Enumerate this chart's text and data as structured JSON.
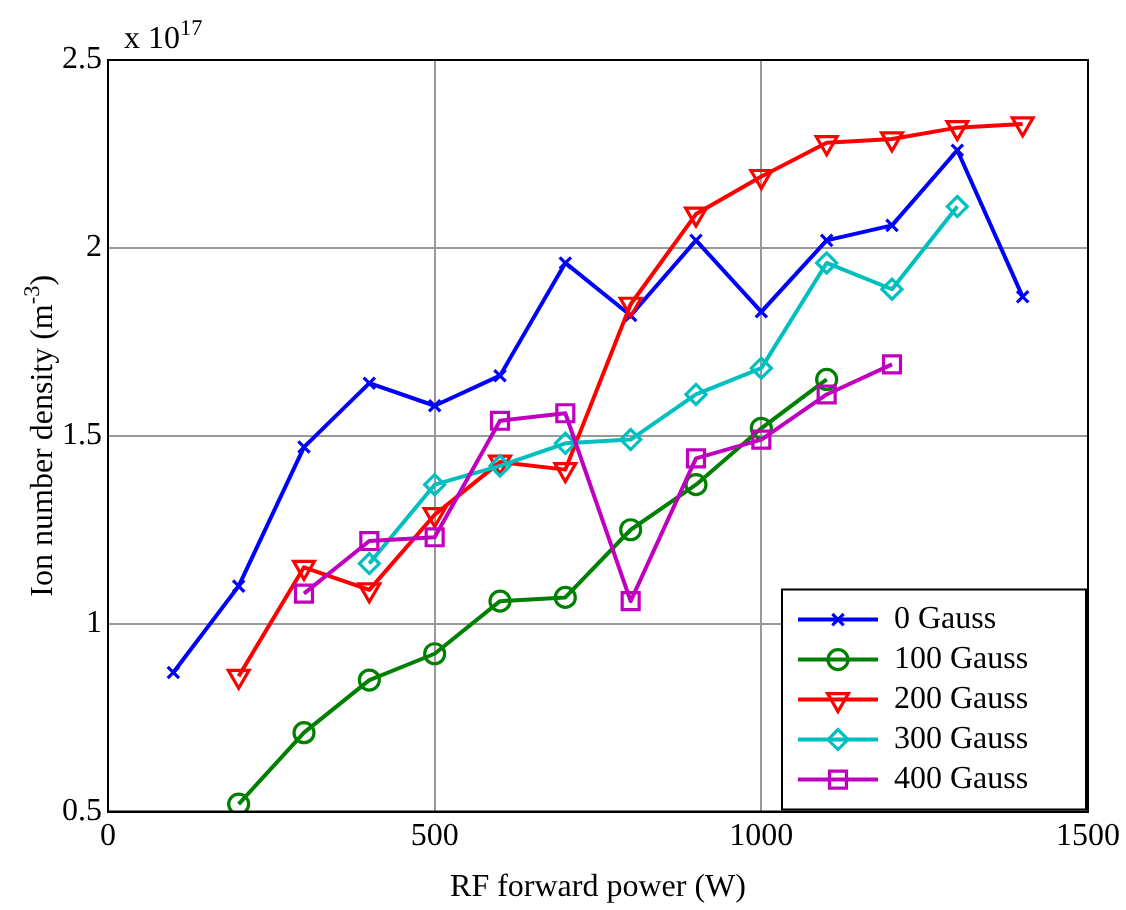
{
  "chart_data": {
    "type": "line",
    "xlabel": "RF forward power (W)",
    "ylabel": "Ion number density (m$^{-3}$)",
    "annotations": [
      "x 10$^{17}$"
    ],
    "xlim": [
      0,
      1500
    ],
    "xticks": [
      0,
      500,
      1000,
      1500
    ],
    "ylim": [
      0.5,
      2.5
    ],
    "yticks": [
      0.5,
      1,
      1.5,
      2,
      2.5
    ],
    "grid": true,
    "legend": "bottom right",
    "line_style": "solid",
    "series": [
      {
        "name": "0 Gauss",
        "color": "#0000ff",
        "marker": "cross",
        "x": [
          100,
          200,
          300,
          400,
          500,
          600,
          700,
          800,
          900,
          1000,
          1100,
          1200,
          1300,
          1400
        ],
        "values": [
          0.87,
          1.1,
          1.47,
          1.64,
          1.58,
          1.66,
          1.96,
          1.82,
          2.02,
          1.83,
          2.02,
          2.06,
          2.26,
          1.87
        ]
      },
      {
        "name": "100 Gauss",
        "color": "#008000",
        "marker": "circle",
        "x": [
          200,
          300,
          400,
          500,
          600,
          700,
          800,
          900,
          1000,
          1100
        ],
        "values": [
          0.52,
          0.71,
          0.85,
          0.92,
          1.06,
          1.07,
          1.25,
          1.37,
          1.52,
          1.65
        ]
      },
      {
        "name": "200 Gauss",
        "color": "#ff0000",
        "marker": "triangle",
        "x": [
          200,
          300,
          400,
          500,
          600,
          700,
          800,
          900,
          1000,
          1100,
          1200,
          1300,
          1400
        ],
        "values": [
          0.86,
          1.15,
          1.09,
          1.29,
          1.43,
          1.41,
          1.85,
          2.09,
          2.19,
          2.28,
          2.29,
          2.32,
          2.33
        ]
      },
      {
        "name": "300 Gauss",
        "color": "#00bfbf",
        "marker": "diamond",
        "x": [
          400,
          500,
          600,
          700,
          800,
          900,
          1000,
          1100,
          1200,
          1300
        ],
        "values": [
          1.16,
          1.37,
          1.42,
          1.48,
          1.49,
          1.61,
          1.68,
          1.96,
          1.89,
          2.11
        ]
      },
      {
        "name": "400 Gauss",
        "color": "#bf00bf",
        "marker": "square",
        "x": [
          300,
          400,
          500,
          600,
          700,
          800,
          900,
          1000,
          1100,
          1200
        ],
        "values": [
          1.08,
          1.22,
          1.23,
          1.54,
          1.56,
          1.06,
          1.44,
          1.49,
          1.61,
          1.69
        ]
      }
    ]
  }
}
